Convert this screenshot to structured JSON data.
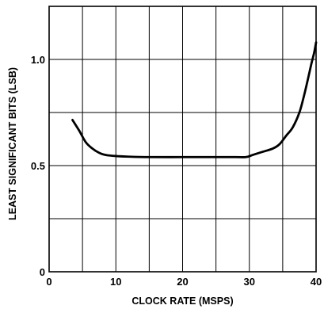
{
  "chart_data": {
    "type": "line",
    "title": "",
    "xlabel": "CLOCK RATE (MSPS)",
    "ylabel": "LEAST SIGNIFICANT BITS (LSB)",
    "xlim": [
      0,
      40
    ],
    "ylim": [
      0,
      1.25
    ],
    "x_ticks": [
      0,
      10,
      20,
      30,
      40
    ],
    "x_tick_labels": [
      "0",
      "10",
      "20",
      "30",
      "40"
    ],
    "y_ticks": [
      0,
      0.5,
      1.0
    ],
    "y_tick_labels": [
      "0",
      "0.5",
      "1.0"
    ],
    "x_grid": [
      5,
      10,
      15,
      20,
      25,
      30,
      35
    ],
    "y_grid": [
      0.25,
      0.5,
      0.75,
      1.0
    ],
    "grid": true,
    "legend": "none",
    "line_color": "#000000",
    "series": [
      {
        "x": [
          3.5,
          4.5,
          5.5,
          6.5,
          7.5,
          8.5,
          10,
          12,
          15,
          20,
          25,
          28,
          29.5,
          30.5,
          32,
          33.5,
          34.5,
          35.5,
          36.5,
          37.5,
          38.2,
          38.8,
          39.3,
          39.7,
          40
        ],
        "y": [
          0.715,
          0.665,
          0.61,
          0.58,
          0.56,
          0.55,
          0.545,
          0.542,
          0.54,
          0.54,
          0.54,
          0.54,
          0.54,
          0.55,
          0.565,
          0.58,
          0.6,
          0.64,
          0.68,
          0.75,
          0.83,
          0.91,
          0.98,
          1.03,
          1.08
        ]
      }
    ]
  }
}
